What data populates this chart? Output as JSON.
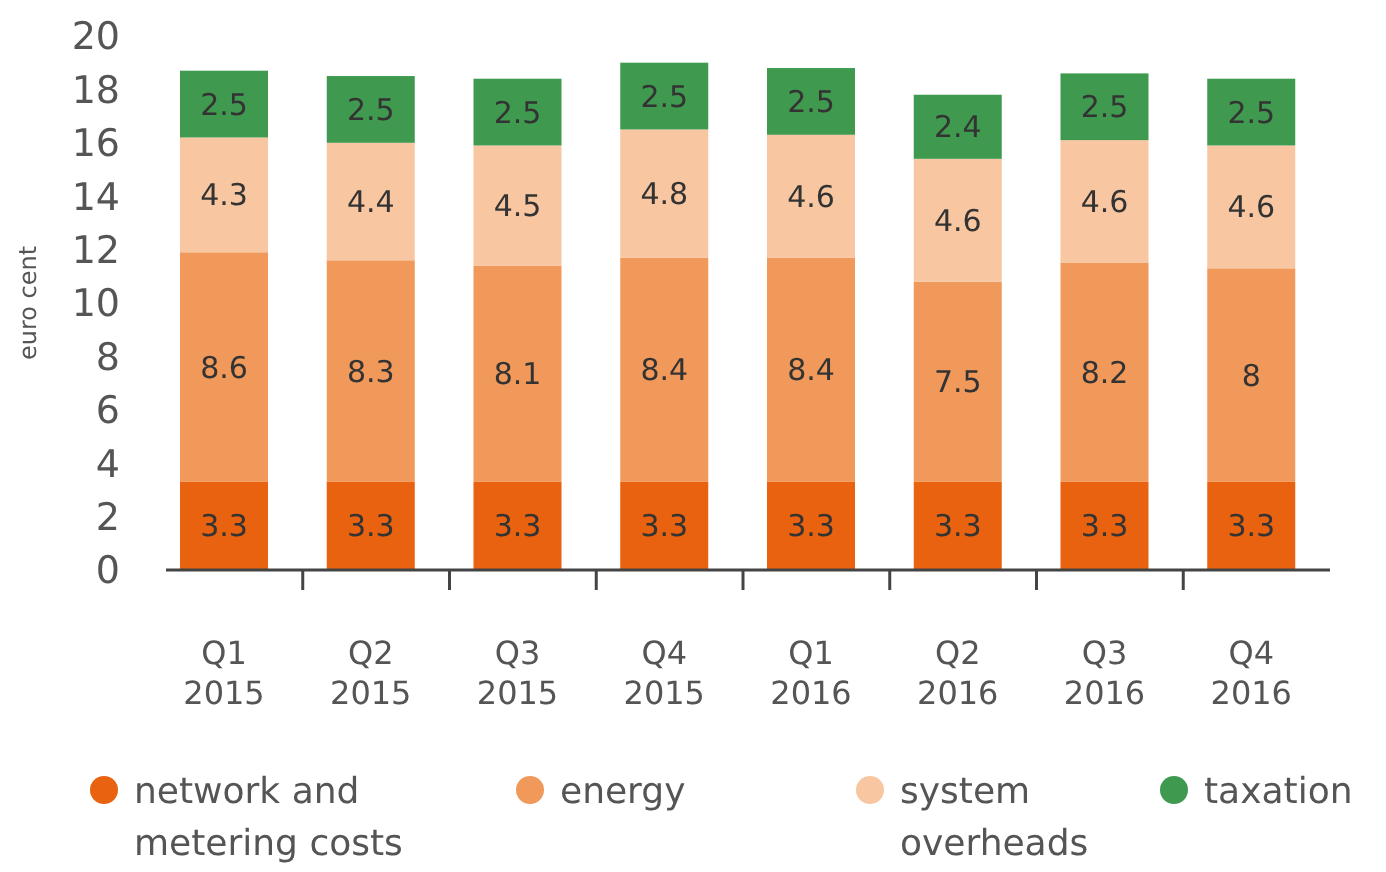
{
  "chart_data": {
    "type": "bar",
    "stacked": true,
    "ylabel": "euro cent",
    "categories": [
      "Q1\n2015",
      "Q2\n2015",
      "Q3\n2015",
      "Q4\n2015",
      "Q1\n2016",
      "Q2\n2016",
      "Q3\n2016",
      "Q4\n2016"
    ],
    "series": [
      {
        "name": "network and metering costs",
        "color": "#e8620f",
        "values": [
          3.3,
          3.3,
          3.3,
          3.3,
          3.3,
          3.3,
          3.3,
          3.3
        ]
      },
      {
        "name": "energy",
        "color": "#f0995a",
        "values": [
          8.6,
          8.3,
          8.1,
          8.4,
          8.4,
          7.5,
          8.2,
          8
        ]
      },
      {
        "name": "system overheads",
        "color": "#f8c6a0",
        "values": [
          4.3,
          4.4,
          4.5,
          4.8,
          4.6,
          4.6,
          4.6,
          4.6
        ]
      },
      {
        "name": "taxation",
        "color": "#3f9a4f",
        "values": [
          2.5,
          2.5,
          2.5,
          2.5,
          2.5,
          2.4,
          2.5,
          2.5
        ]
      }
    ],
    "ylim": [
      0,
      20
    ],
    "yticks": [
      0,
      2,
      4,
      6,
      8,
      10,
      12,
      14,
      16,
      18,
      20
    ],
    "data_labels": true,
    "grid": false,
    "legend": "bottom"
  }
}
